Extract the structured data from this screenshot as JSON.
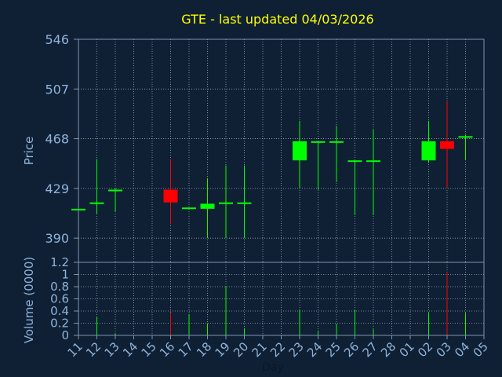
{
  "chart_data": {
    "type": "candlestick",
    "title": "GTE - last updated 04/03/2026",
    "xlabel": "Day",
    "price": {
      "ylabel": "Price",
      "ylim": [
        371,
        546
      ],
      "yticks": [
        390,
        429,
        468,
        507,
        546
      ]
    },
    "volume": {
      "ylabel": "Volume (0000)",
      "ylim": [
        0,
        1.2
      ],
      "yticks": [
        0,
        0.2,
        0.4,
        0.6,
        0.8,
        1,
        1.2
      ],
      "yticklabels": [
        "0",
        "0.2",
        "0.4",
        "0.6",
        "0.8",
        "1",
        "1.2"
      ]
    },
    "categories": [
      "11",
      "12",
      "13",
      "14",
      "15",
      "16",
      "17",
      "18",
      "19",
      "20",
      "21",
      "22",
      "23",
      "24",
      "25",
      "26",
      "27",
      "28",
      "01",
      "02",
      "03",
      "04",
      "05"
    ],
    "candles": [
      {
        "x": "11",
        "open": 413,
        "high": 413,
        "low": 413,
        "close": 413,
        "volume": 0.03
      },
      {
        "x": "12",
        "open": 417,
        "high": 452,
        "low": 409,
        "close": 418,
        "volume": 0.3
      },
      {
        "x": "13",
        "open": 427,
        "high": 429,
        "low": 411,
        "close": 428,
        "volume": 0.03
      },
      {
        "x": "16",
        "open": 428,
        "high": 452,
        "low": 401,
        "close": 418,
        "volume": 0.37
      },
      {
        "x": "17",
        "open": 414,
        "high": 414,
        "low": 414,
        "close": 414,
        "volume": 0.35
      },
      {
        "x": "18",
        "open": 413,
        "high": 437,
        "low": 390,
        "close": 417,
        "volume": 0.2
      },
      {
        "x": "19",
        "open": 417,
        "high": 447,
        "low": 390,
        "close": 418,
        "volume": 0.8
      },
      {
        "x": "20",
        "open": 417,
        "high": 447,
        "low": 390,
        "close": 418,
        "volume": 0.12
      },
      {
        "x": "23",
        "open": 451,
        "high": 482,
        "low": 429,
        "close": 466,
        "volume": 0.42
      },
      {
        "x": "24",
        "open": 465,
        "high": 466,
        "low": 428,
        "close": 466,
        "volume": 0.08
      },
      {
        "x": "25",
        "open": 465,
        "high": 478,
        "low": 434,
        "close": 466,
        "volume": 0.18
      },
      {
        "x": "26",
        "open": 450,
        "high": 451,
        "low": 408,
        "close": 451,
        "volume": 0.42
      },
      {
        "x": "27",
        "open": 450,
        "high": 475,
        "low": 408,
        "close": 451,
        "volume": 0.1
      },
      {
        "x": "02",
        "open": 451,
        "high": 482,
        "low": 449,
        "close": 466,
        "volume": 0.37
      },
      {
        "x": "03",
        "open": 466,
        "high": 497,
        "low": 429,
        "close": 460,
        "volume": 1.05
      },
      {
        "x": "04",
        "open": 469,
        "high": 471,
        "low": 451,
        "close": 470,
        "volume": 0.37
      }
    ],
    "colors": {
      "up": "#00ff00",
      "down": "#ff0000",
      "title": "#ffff00",
      "axis_text": "#8fb3d9",
      "axis_line": "#7f93ad",
      "background": "#0f2035",
      "grid": "#9aa8bb"
    },
    "grid": true
  }
}
